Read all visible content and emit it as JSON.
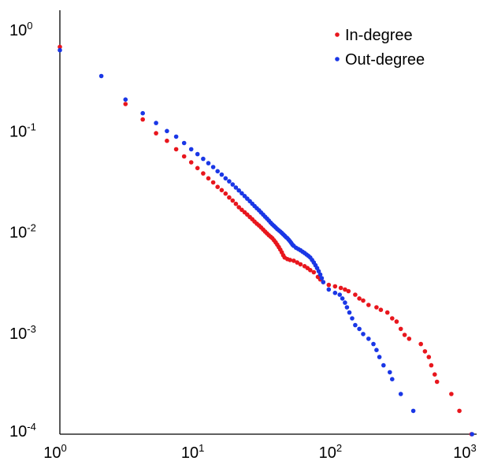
{
  "chart_data": {
    "type": "scatter",
    "title": "",
    "xlabel": "",
    "ylabel": "",
    "x_scale": "log",
    "y_scale": "log",
    "xlim": [
      1,
      1000
    ],
    "ylim": [
      0.0001,
      1
    ],
    "grid": false,
    "legend_position": "top-right",
    "x_ticks": [
      {
        "value": 1,
        "base": "10",
        "exp": "0"
      },
      {
        "value": 10,
        "base": "10",
        "exp": "1"
      },
      {
        "value": 100,
        "base": "10",
        "exp": "2"
      },
      {
        "value": 1000,
        "base": "10",
        "exp": "3"
      }
    ],
    "y_ticks": [
      {
        "value": 1,
        "base": "10",
        "exp": "0"
      },
      {
        "value": 0.1,
        "base": "10",
        "exp": "-1"
      },
      {
        "value": 0.01,
        "base": "10",
        "exp": "-2"
      },
      {
        "value": 0.001,
        "base": "10",
        "exp": "-3"
      },
      {
        "value": 0.0001,
        "base": "10",
        "exp": "-4"
      }
    ],
    "series": [
      {
        "name": "In-degree",
        "color": "#e8161d",
        "points": [
          [
            1,
            0.68
          ],
          [
            3,
            0.185
          ],
          [
            4,
            0.13
          ],
          [
            5,
            0.095
          ],
          [
            6,
            0.08
          ],
          [
            7,
            0.066
          ],
          [
            8,
            0.056
          ],
          [
            9,
            0.049
          ],
          [
            10,
            0.043
          ],
          [
            11,
            0.038
          ],
          [
            12,
            0.034
          ],
          [
            13,
            0.031
          ],
          [
            14,
            0.028
          ],
          [
            15,
            0.026
          ],
          [
            16,
            0.024
          ],
          [
            17,
            0.022
          ],
          [
            18,
            0.0205
          ],
          [
            19,
            0.019
          ],
          [
            20,
            0.0176
          ],
          [
            21,
            0.0166
          ],
          [
            22,
            0.0157
          ],
          [
            23,
            0.0149
          ],
          [
            24,
            0.0141
          ],
          [
            25,
            0.0134
          ],
          [
            26,
            0.0127
          ],
          [
            27,
            0.0121
          ],
          [
            28,
            0.0116
          ],
          [
            29,
            0.0111
          ],
          [
            30,
            0.0106
          ],
          [
            31,
            0.0101
          ],
          [
            32,
            0.0097
          ],
          [
            33,
            0.0093
          ],
          [
            34,
            0.009
          ],
          [
            35,
            0.0087
          ],
          [
            36,
            0.0083
          ],
          [
            37,
            0.0079
          ],
          [
            38,
            0.0075
          ],
          [
            39,
            0.0071
          ],
          [
            40,
            0.0067
          ],
          [
            41,
            0.0063
          ],
          [
            42,
            0.0059
          ],
          [
            43,
            0.0056
          ],
          [
            45,
            0.0054
          ],
          [
            47,
            0.0053
          ],
          [
            50,
            0.0052
          ],
          [
            53,
            0.005
          ],
          [
            56,
            0.0048
          ],
          [
            60,
            0.0046
          ],
          [
            63,
            0.0044
          ],
          [
            66,
            0.0042
          ],
          [
            70,
            0.004
          ],
          [
            75,
            0.0036
          ],
          [
            78,
            0.0034
          ],
          [
            82,
            0.0032
          ],
          [
            90,
            0.003
          ],
          [
            100,
            0.0029
          ],
          [
            110,
            0.0028
          ],
          [
            118,
            0.0027
          ],
          [
            125,
            0.0026
          ],
          [
            140,
            0.0024
          ],
          [
            150,
            0.0022
          ],
          [
            160,
            0.0021
          ],
          [
            175,
            0.0019
          ],
          [
            200,
            0.0018
          ],
          [
            215,
            0.0017
          ],
          [
            240,
            0.0016
          ],
          [
            260,
            0.0014
          ],
          [
            280,
            0.0013
          ],
          [
            300,
            0.0011
          ],
          [
            320,
            0.00096
          ],
          [
            345,
            0.00088
          ],
          [
            420,
            0.00078
          ],
          [
            450,
            0.00066
          ],
          [
            480,
            0.00058
          ],
          [
            500,
            0.00048
          ],
          [
            530,
            0.00039
          ],
          [
            550,
            0.00033
          ],
          [
            700,
            0.00025
          ],
          [
            800,
            0.00017
          ],
          [
            980,
            0.0001
          ]
        ]
      },
      {
        "name": "Out-degree",
        "color": "#1a37e6",
        "points": [
          [
            1,
            0.63
          ],
          [
            2,
            0.35
          ],
          [
            3,
            0.205
          ],
          [
            4,
            0.15
          ],
          [
            5,
            0.12
          ],
          [
            6,
            0.1
          ],
          [
            7,
            0.088
          ],
          [
            8,
            0.076
          ],
          [
            9,
            0.066
          ],
          [
            10,
            0.059
          ],
          [
            11,
            0.053
          ],
          [
            12,
            0.048
          ],
          [
            13,
            0.044
          ],
          [
            14,
            0.04
          ],
          [
            15,
            0.037
          ],
          [
            16,
            0.034
          ],
          [
            17,
            0.0318
          ],
          [
            18,
            0.0296
          ],
          [
            19,
            0.0276
          ],
          [
            20,
            0.0258
          ],
          [
            21,
            0.0242
          ],
          [
            22,
            0.0227
          ],
          [
            23,
            0.0214
          ],
          [
            24,
            0.0202
          ],
          [
            25,
            0.0191
          ],
          [
            26,
            0.0181
          ],
          [
            27,
            0.0172
          ],
          [
            28,
            0.0164
          ],
          [
            29,
            0.0156
          ],
          [
            30,
            0.0149
          ],
          [
            31,
            0.0142
          ],
          [
            32,
            0.0136
          ],
          [
            33,
            0.013
          ],
          [
            34,
            0.0124
          ],
          [
            35,
            0.0119
          ],
          [
            36,
            0.0115
          ],
          [
            37,
            0.0111
          ],
          [
            38,
            0.0107
          ],
          [
            39,
            0.0104
          ],
          [
            40,
            0.0101
          ],
          [
            41,
            0.0098
          ],
          [
            42,
            0.0095
          ],
          [
            43,
            0.0092
          ],
          [
            44,
            0.0089
          ],
          [
            45,
            0.0087
          ],
          [
            46,
            0.0084
          ],
          [
            47,
            0.0081
          ],
          [
            48,
            0.0078
          ],
          [
            49,
            0.0075
          ],
          [
            50,
            0.0073
          ],
          [
            52,
            0.007
          ],
          [
            54,
            0.0068
          ],
          [
            56,
            0.0066
          ],
          [
            58,
            0.0064
          ],
          [
            60,
            0.0062
          ],
          [
            62,
            0.006
          ],
          [
            64,
            0.0058
          ],
          [
            66,
            0.0056
          ],
          [
            68,
            0.0053
          ],
          [
            70,
            0.005
          ],
          [
            72,
            0.0047
          ],
          [
            74,
            0.0044
          ],
          [
            76,
            0.0041
          ],
          [
            78,
            0.0038
          ],
          [
            80,
            0.0035
          ],
          [
            82,
            0.0032
          ],
          [
            90,
            0.0027
          ],
          [
            100,
            0.0025
          ],
          [
            108,
            0.0024
          ],
          [
            113,
            0.0022
          ],
          [
            118,
            0.002
          ],
          [
            122,
            0.0018
          ],
          [
            127,
            0.0016
          ],
          [
            133,
            0.0014
          ],
          [
            140,
            0.0012
          ],
          [
            150,
            0.0011
          ],
          [
            160,
            0.00098
          ],
          [
            175,
            0.00088
          ],
          [
            190,
            0.00078
          ],
          [
            200,
            0.00068
          ],
          [
            210,
            0.00058
          ],
          [
            225,
            0.00048
          ],
          [
            250,
            0.00041
          ],
          [
            260,
            0.00035
          ],
          [
            300,
            0.00025
          ],
          [
            370,
            0.00017
          ],
          [
            990,
            0.0001
          ]
        ]
      }
    ]
  }
}
